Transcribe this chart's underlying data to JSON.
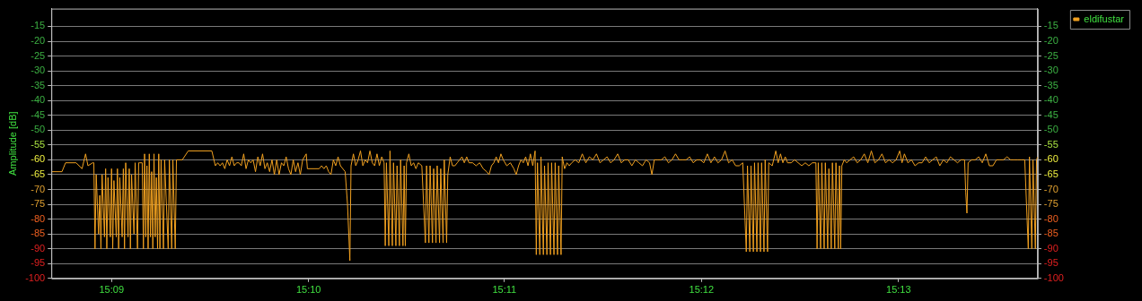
{
  "chart_data": {
    "type": "line",
    "ylabel": "Amplitude [dB]",
    "legend": "top right",
    "grid": "y",
    "xlim": [
      15.1449,
      15.2285
    ],
    "xticks": [
      {
        "value": 15.15,
        "label": "15:09"
      },
      {
        "value": 15.1667,
        "label": "15:10"
      },
      {
        "value": 15.1833,
        "label": "15:11"
      },
      {
        "value": 15.2,
        "label": "15:12"
      },
      {
        "value": 15.2167,
        "label": "15:13"
      }
    ],
    "ylim": [
      -100,
      -9
    ],
    "yticks": [
      -100,
      -95,
      -90,
      -85,
      -80,
      -75,
      -70,
      -65,
      -60,
      -55,
      -50,
      -45,
      -40,
      -35,
      -30,
      -25,
      -20,
      -15
    ],
    "y2lim": [
      -100,
      -9
    ],
    "y2ticks": [
      -100,
      -95,
      -90,
      -85,
      -80,
      -75,
      -70,
      -65,
      -60,
      -55,
      -50,
      -45,
      -40,
      -35,
      -30,
      -25,
      -20,
      -15
    ],
    "x": [
      15.1449,
      15.1458,
      15.1461,
      15.147,
      15.1475,
      15.1478,
      15.148,
      15.1484,
      15.1485,
      15.1486,
      15.1487,
      15.1489,
      15.149,
      15.1491,
      15.1492,
      15.1494,
      15.1495,
      15.1496,
      15.1497,
      15.1499,
      15.15,
      15.1501,
      15.1502,
      15.1504,
      15.1505,
      15.1506,
      15.1507,
      15.1509,
      15.151,
      15.1511,
      15.1512,
      15.1514,
      15.1515,
      15.1516,
      15.1517,
      15.1519,
      15.152,
      15.1522,
      15.1523,
      15.1524,
      15.1526,
      15.1527,
      15.1528,
      15.1529,
      15.153,
      15.1531,
      15.1532,
      15.1533,
      15.1534,
      15.1535,
      15.1536,
      15.1537,
      15.1538,
      15.1539,
      15.154,
      15.1541,
      15.1542,
      15.1544,
      15.1545,
      15.1548,
      15.1549,
      15.1551,
      15.1552,
      15.1554,
      15.1555,
      15.156,
      15.1565,
      15.1585,
      15.1588,
      15.159,
      15.1592,
      15.1594,
      15.1596,
      15.1598,
      15.16,
      15.1602,
      15.1604,
      15.1606,
      15.1608,
      15.161,
      15.1612,
      15.1614,
      15.1616,
      15.1618,
      15.162,
      15.1622,
      15.1624,
      15.1626,
      15.1628,
      15.163,
      15.1632,
      15.1634,
      15.1636,
      15.1638,
      15.164,
      15.1642,
      15.1644,
      15.1646,
      15.1648,
      15.165,
      15.1652,
      15.1654,
      15.1656,
      15.1658,
      15.166,
      15.1662,
      15.1665,
      15.1666,
      15.1676,
      15.1678,
      15.168,
      15.1682,
      15.1684,
      15.1686,
      15.1688,
      15.169,
      15.1692,
      15.1694,
      15.1698,
      15.17,
      15.1702,
      15.1703,
      15.1705,
      15.1707,
      15.1709,
      15.1711,
      15.1713,
      15.1715,
      15.1717,
      15.1719,
      15.1721,
      15.1723,
      15.1725,
      15.1727,
      15.1729,
      15.1731,
      15.1732,
      15.1733,
      15.1735,
      15.1736,
      15.1738,
      15.1739,
      15.1741,
      15.1742,
      15.1744,
      15.1745,
      15.1747,
      15.1748,
      15.1749,
      15.175,
      15.1752,
      15.1754,
      15.1756,
      15.1758,
      15.176,
      15.1763,
      15.1766,
      15.1767,
      15.1769,
      15.177,
      15.1772,
      15.1773,
      15.1775,
      15.1776,
      15.1778,
      15.1779,
      15.1781,
      15.1782,
      15.1784,
      15.1785,
      15.1787,
      15.1789,
      15.1791,
      15.1793,
      15.1795,
      15.1797,
      15.1799,
      15.1801,
      15.1803,
      15.1806,
      15.1809,
      15.1812,
      15.1815,
      15.1818,
      15.182,
      15.1822,
      15.1824,
      15.1826,
      15.1828,
      15.183,
      15.1832,
      15.1835,
      15.1838,
      15.1841,
      15.1843,
      15.1845,
      15.1847,
      15.1849,
      15.1851,
      15.1853,
      15.1855,
      15.1857,
      15.1859,
      15.186,
      15.1861,
      15.1863,
      15.1864,
      15.1866,
      15.1867,
      15.1869,
      15.187,
      15.1872,
      15.1873,
      15.1875,
      15.1876,
      15.1878,
      15.1879,
      15.1881,
      15.1882,
      15.1884,
      15.1886,
      15.1888,
      15.189,
      15.1893,
      15.1896,
      15.1899,
      15.1902,
      15.1905,
      15.1908,
      15.1911,
      15.1914,
      15.1917,
      15.192,
      15.1923,
      15.1926,
      15.1929,
      15.1932,
      15.1935,
      15.1938,
      15.1941,
      15.1944,
      15.1947,
      15.195,
      15.1953,
      15.1956,
      15.1958,
      15.196,
      15.1963,
      15.1966,
      15.1969,
      15.1972,
      15.1975,
      15.1978,
      15.1981,
      15.1984,
      15.1987,
      15.199,
      15.1993,
      15.1996,
      15.1999,
      15.2002,
      15.2005,
      15.2008,
      15.2011,
      15.2014,
      15.2017,
      15.202,
      15.2023,
      15.2026,
      15.2029,
      15.2032,
      15.2035,
      15.2038,
      15.2039,
      15.2041,
      15.2042,
      15.2044,
      15.2045,
      15.2047,
      15.2048,
      15.205,
      15.2051,
      15.2053,
      15.2054,
      15.2056,
      15.2057,
      15.206,
      15.2063,
      15.2065,
      15.2067,
      15.2069,
      15.2071,
      15.2073,
      15.2076,
      15.2079,
      15.2082,
      15.2085,
      15.2088,
      15.2091,
      15.2094,
      15.2097,
      15.2098,
      15.2099,
      15.2101,
      15.2102,
      15.2104,
      15.2105,
      15.2107,
      15.2108,
      15.211,
      15.2111,
      15.2113,
      15.2114,
      15.2116,
      15.2117,
      15.2118,
      15.2119,
      15.2121,
      15.2123,
      15.2126,
      15.2129,
      15.2132,
      15.2135,
      15.2138,
      15.2141,
      15.2144,
      15.2147,
      15.215,
      15.2153,
      15.2156,
      15.2159,
      15.2162,
      15.2165,
      15.2168,
      15.217,
      15.2172,
      15.2175,
      15.2178,
      15.2181,
      15.2184,
      15.2187,
      15.219,
      15.2193,
      15.2196,
      15.2199,
      15.2202,
      15.2205,
      15.2208,
      15.2211,
      15.2214,
      15.2217,
      15.222,
      15.2223,
      15.2224,
      15.2225,
      15.2226,
      15.2229,
      15.2232,
      15.2235,
      15.2238,
      15.2241,
      15.2244,
      15.2247,
      15.225,
      15.2253,
      15.2256,
      15.2259,
      15.2262,
      15.2265,
      15.2268,
      15.2271,
      15.2274,
      15.2277,
      15.2278,
      15.228,
      15.2281,
      15.2283,
      15.2284,
      15.2285
    ],
    "series": [
      {
        "name": "eldifustar",
        "color": "#f0a020",
        "values": [
          -64,
          -64,
          -61,
          -61,
          -63,
          -58,
          -62,
          -61,
          -61,
          -90,
          -65,
          -85,
          -72,
          -90,
          -65,
          -86,
          -63,
          -90,
          -66,
          -86,
          -63,
          -90,
          -67,
          -86,
          -63,
          -90,
          -66,
          -86,
          -63,
          -90,
          -61,
          -86,
          -63,
          -90,
          -65,
          -85,
          -61,
          -90,
          -61,
          -61,
          -61,
          -90,
          -58,
          -86,
          -62,
          -90,
          -58,
          -86,
          -64,
          -90,
          -58,
          -86,
          -66,
          -90,
          -58,
          -90,
          -60,
          -90,
          -60,
          -90,
          -60,
          -90,
          -60,
          -90,
          -60,
          -60,
          -57,
          -57,
          -62,
          -61,
          -62,
          -61,
          -63,
          -60,
          -62,
          -59,
          -62,
          -61,
          -61,
          -62,
          -58,
          -63,
          -60,
          -61,
          -60,
          -64,
          -59,
          -62,
          -58,
          -63,
          -61,
          -64,
          -60,
          -65,
          -60,
          -65,
          -61,
          -62,
          -59,
          -63,
          -65,
          -60,
          -64,
          -61,
          -65,
          -60,
          -58,
          -63,
          -63,
          -62,
          -63,
          -62,
          -64,
          -65,
          -60,
          -62,
          -59,
          -62,
          -64,
          -75,
          -94,
          -62,
          -58,
          -62,
          -60,
          -57,
          -62,
          -60,
          -61,
          -57,
          -61,
          -62,
          -58,
          -62,
          -59,
          -61,
          -89,
          -61,
          -89,
          -57,
          -89,
          -61,
          -89,
          -62,
          -89,
          -60,
          -89,
          -62,
          -89,
          -61,
          -58,
          -62,
          -61,
          -63,
          -61,
          -62,
          -88,
          -62,
          -88,
          -62,
          -88,
          -63,
          -88,
          -62,
          -88,
          -63,
          -88,
          -60,
          -88,
          -65,
          -59,
          -62,
          -62,
          -61,
          -60,
          -59,
          -61,
          -59,
          -61,
          -61,
          -62,
          -61,
          -63,
          -64,
          -65,
          -62,
          -61,
          -59,
          -61,
          -58,
          -60,
          -62,
          -61,
          -63,
          -65,
          -62,
          -60,
          -61,
          -59,
          -62,
          -58,
          -62,
          -57,
          -92,
          -61,
          -92,
          -59,
          -92,
          -62,
          -92,
          -61,
          -92,
          -61,
          -92,
          -61,
          -92,
          -62,
          -92,
          -59,
          -63,
          -61,
          -62,
          -61,
          -60,
          -61,
          -58,
          -61,
          -59,
          -60,
          -58,
          -61,
          -60,
          -59,
          -61,
          -60,
          -58,
          -61,
          -60,
          -60,
          -62,
          -60,
          -61,
          -62,
          -60,
          -61,
          -65,
          -60,
          -60,
          -60,
          -59,
          -61,
          -60,
          -58,
          -60,
          -60,
          -60,
          -59,
          -61,
          -60,
          -60,
          -61,
          -58,
          -61,
          -59,
          -61,
          -60,
          -57,
          -61,
          -60,
          -62,
          -62,
          -61,
          -91,
          -62,
          -91,
          -62,
          -91,
          -61,
          -91,
          -61,
          -91,
          -61,
          -91,
          -60,
          -91,
          -61,
          -62,
          -57,
          -61,
          -58,
          -61,
          -59,
          -61,
          -61,
          -60,
          -61,
          -62,
          -61,
          -62,
          -61,
          -61,
          -90,
          -61,
          -90,
          -61,
          -90,
          -61,
          -90,
          -63,
          -90,
          -61,
          -90,
          -61,
          -90,
          -62,
          -90,
          -62,
          -60,
          -61,
          -60,
          -59,
          -61,
          -60,
          -58,
          -61,
          -57,
          -61,
          -60,
          -58,
          -61,
          -60,
          -61,
          -60,
          -57,
          -61,
          -58,
          -61,
          -60,
          -62,
          -61,
          -61,
          -59,
          -61,
          -60,
          -59,
          -62,
          -60,
          -61,
          -59,
          -60,
          -61,
          -60,
          -60,
          -71,
          -78,
          -61,
          -60,
          -60,
          -59,
          -61,
          -58,
          -62,
          -62,
          -60,
          -60,
          -60,
          -59,
          -60,
          -60,
          -60,
          -60,
          -60,
          -90,
          -59,
          -90,
          -60,
          -90,
          -60,
          -59
        ]
      }
    ]
  }
}
